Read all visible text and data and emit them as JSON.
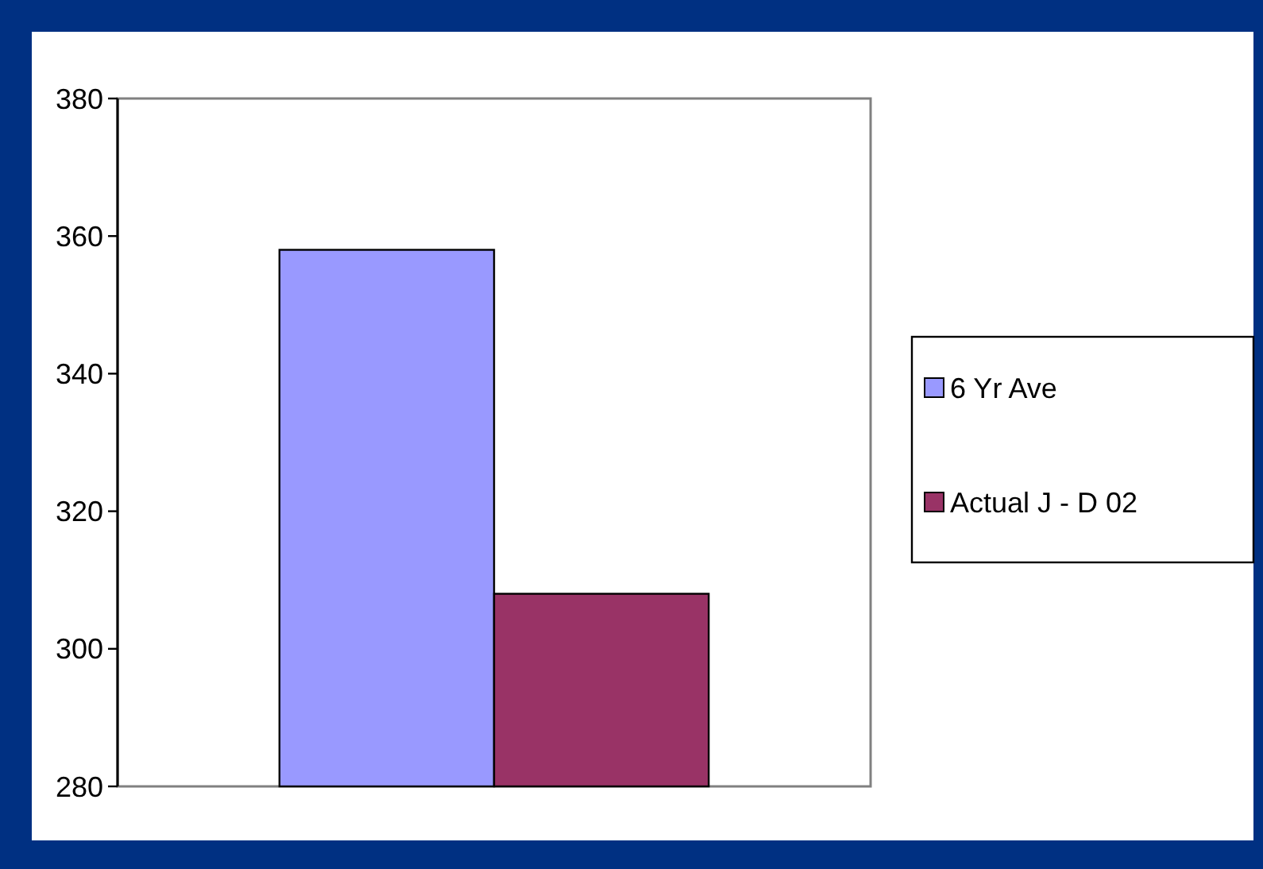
{
  "chart_data": {
    "type": "bar",
    "categories": [
      null
    ],
    "series": [
      {
        "name": "6 Yr Ave",
        "color": "#9999ff",
        "values": [
          358
        ]
      },
      {
        "name": "Actual J - D 02",
        "color": "#993366",
        "values": [
          308
        ]
      }
    ],
    "ylim": [
      280,
      380
    ],
    "yticks": [
      280,
      300,
      320,
      340,
      360,
      380
    ],
    "grid": false,
    "legend": "right"
  }
}
